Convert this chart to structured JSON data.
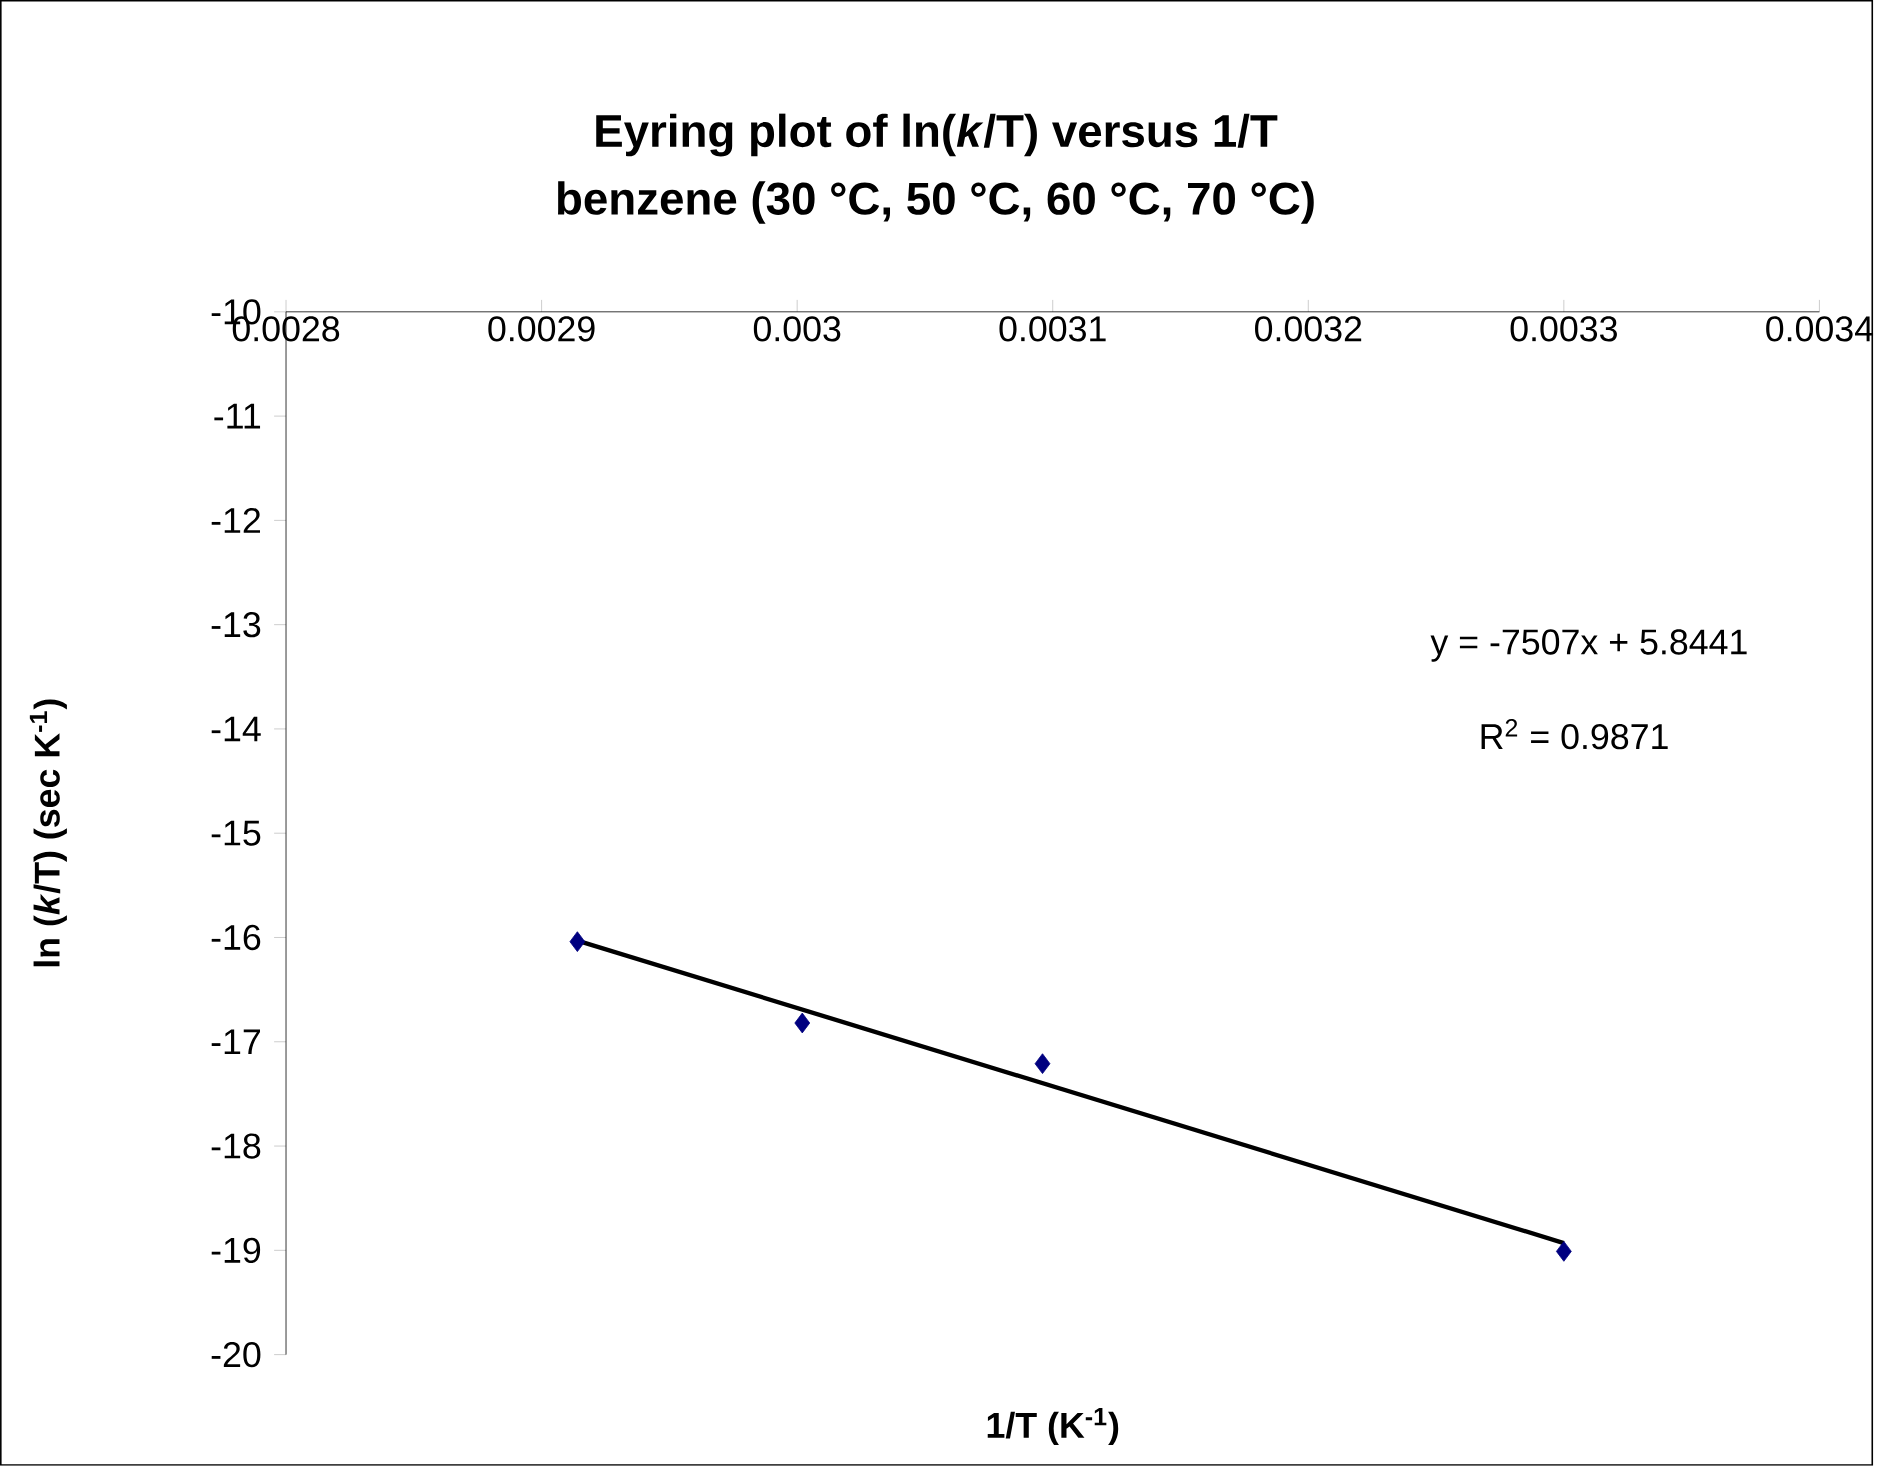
{
  "chart_data": {
    "type": "scatter",
    "title": "Eyring plot of ln(*k*/T) versus 1/T",
    "subtitle": "benzene (30 °C, 50 °C, 60 °C, 70 °C)",
    "xlabel": "1/T (K$^{-1}$)",
    "ylabel": "ln (*k*/T) (sec K$^{-1}$)",
    "series": [
      {
        "type": "scatter",
        "color": "#000080",
        "marker": "diamond",
        "x": [
          0.002914,
          0.003002,
          0.003096,
          0.0033
        ],
        "values": [
          -16.04,
          -16.82,
          -17.21,
          -19.01
        ]
      },
      {
        "type": "line",
        "color": "#000000",
        "marker": "none",
        "line_style": "solid",
        "x": [
          0.002914,
          0.0033
        ],
        "values": [
          -16.03,
          -18.93
        ]
      }
    ],
    "xlim": [
      0.0028,
      0.0034
    ],
    "xticks": [
      0.0028,
      0.0029,
      0.003,
      0.0031,
      0.0032,
      0.0033,
      0.0034
    ],
    "ylim": [
      -20,
      -10
    ],
    "yticks": [
      -10,
      -11,
      -12,
      -13,
      -14,
      -15,
      -16,
      -17,
      -18,
      -19,
      -20
    ],
    "annotations": [
      "y = -7507x + 5.8441",
      "R$^{2}$ = 0.9871"
    ],
    "grid": false
  }
}
